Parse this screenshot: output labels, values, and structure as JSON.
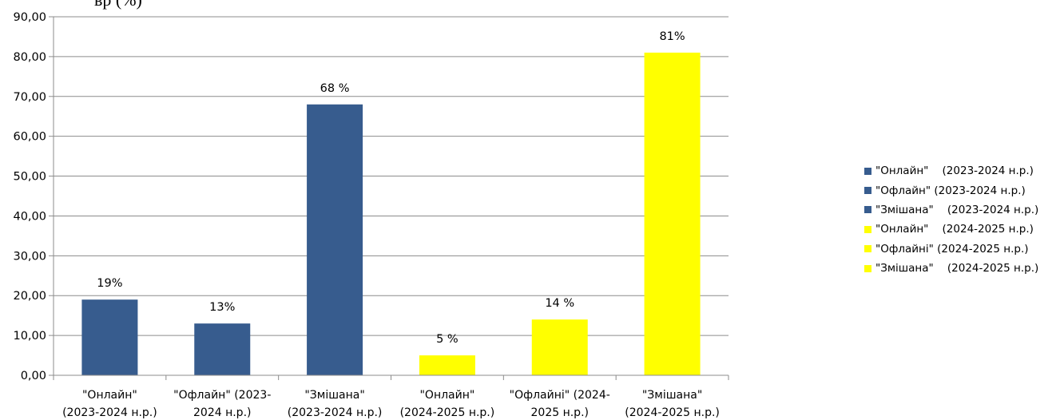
{
  "clipped_title": "вр (%)",
  "colors": {
    "series_2023": "#375c8e",
    "series_2024": "#ffff00",
    "grid": "#8c8c8c",
    "axis": "#8c8c8c"
  },
  "chart_data": {
    "type": "bar",
    "title": "",
    "xlabel": "",
    "ylabel": "",
    "ylim": [
      0,
      90
    ],
    "y_tick_step": 10,
    "y_tick_labels": [
      "0,00",
      "10,00",
      "20,00",
      "30,00",
      "40,00",
      "50,00",
      "60,00",
      "70,00",
      "80,00",
      "90,00"
    ],
    "grid": true,
    "legend_position": "right",
    "categories": [
      [
        "\"Онлайн\"",
        "(2023-2024 н.р.)"
      ],
      [
        "\"Офлайн\" (2023-",
        "2024 н.р.)"
      ],
      [
        "\"Змішана\"",
        "(2023-2024 н.р.)"
      ],
      [
        "\"Онлайн\"",
        "(2024-2025 н.р.)"
      ],
      [
        "\"Офлайні\" (2024-",
        "2025 н.р.)"
      ],
      [
        "\"Змішана\"",
        "(2024-2025 н.р.)"
      ]
    ],
    "values": [
      19,
      13,
      68,
      5,
      14,
      81
    ],
    "data_labels": [
      "19%",
      "13%",
      "68 %",
      "5 %",
      "14 %",
      "81%"
    ],
    "bar_color_keys": [
      "series_2023",
      "series_2023",
      "series_2023",
      "series_2024",
      "series_2024",
      "series_2024"
    ],
    "legend": [
      {
        "label": "\"Онлайн\"    (2023-2024 н.р.)",
        "color_key": "series_2023"
      },
      {
        "label": "\"Офлайн\" (2023-2024 н.р.)",
        "color_key": "series_2023"
      },
      {
        "label": "\"Змішана\"    (2023-2024 н.р.)",
        "color_key": "series_2023"
      },
      {
        "label": "\"Онлайн\"    (2024-2025 н.р.)",
        "color_key": "series_2024"
      },
      {
        "label": "\"Офлайні\" (2024-2025 н.р.)",
        "color_key": "series_2024"
      },
      {
        "label": "\"Змішана\"    (2024-2025 н.р.)",
        "color_key": "series_2024"
      }
    ]
  }
}
